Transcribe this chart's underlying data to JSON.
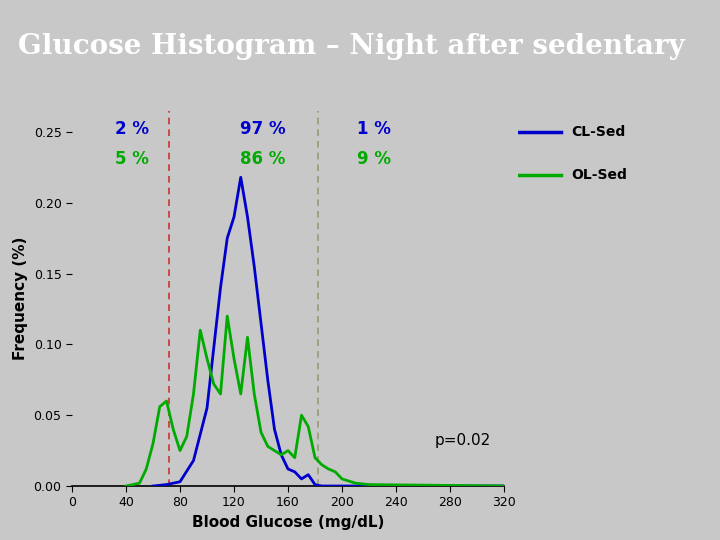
{
  "title": "Glucose Histogram – Night after sedentary",
  "title_bg_color": "#1B5EAB",
  "title_text_color": "#FFFFFF",
  "plot_bg_color": "#C8C8C8",
  "fig_bg_color": "#C8C8C8",
  "blue_band_color": "#4A90D9",
  "xlabel": "Blood Glucose (mg/dL)",
  "ylabel": "Frequency (%)",
  "xlim": [
    0,
    320
  ],
  "ylim": [
    0,
    0.265
  ],
  "xticks": [
    0,
    40,
    80,
    120,
    160,
    200,
    240,
    280,
    320
  ],
  "yticks": [
    0.0,
    0.05,
    0.1,
    0.15,
    0.2,
    0.25
  ],
  "vline1_x": 72,
  "vline1_color": "#CC3333",
  "vline2_x": 182,
  "vline2_color": "#999977",
  "cl_sed_color": "#0000CC",
  "ol_sed_color": "#00AA00",
  "legend_label_color": "#000000",
  "cl_x": [
    60,
    70,
    80,
    90,
    100,
    110,
    115,
    120,
    125,
    130,
    135,
    140,
    145,
    150,
    155,
    160,
    165,
    170,
    175,
    180,
    185,
    190,
    320
  ],
  "cl_y": [
    0.0,
    0.001,
    0.003,
    0.018,
    0.055,
    0.14,
    0.175,
    0.19,
    0.218,
    0.19,
    0.155,
    0.115,
    0.075,
    0.04,
    0.022,
    0.012,
    0.01,
    0.005,
    0.008,
    0.001,
    0.0,
    0.0,
    0.0
  ],
  "ol_x": [
    40,
    50,
    55,
    60,
    65,
    70,
    75,
    80,
    85,
    90,
    95,
    100,
    105,
    110,
    115,
    120,
    125,
    130,
    135,
    140,
    145,
    150,
    155,
    160,
    165,
    170,
    175,
    180,
    185,
    190,
    195,
    200,
    210,
    220,
    320
  ],
  "ol_y": [
    0.0,
    0.002,
    0.012,
    0.03,
    0.056,
    0.06,
    0.04,
    0.025,
    0.035,
    0.065,
    0.11,
    0.09,
    0.072,
    0.065,
    0.12,
    0.09,
    0.065,
    0.105,
    0.065,
    0.038,
    0.028,
    0.025,
    0.022,
    0.025,
    0.02,
    0.05,
    0.042,
    0.02,
    0.015,
    0.012,
    0.01,
    0.005,
    0.002,
    0.001,
    0.0
  ],
  "pct_blue_left": "2 %",
  "pct_blue_mid": "97 %",
  "pct_blue_right": "1 %",
  "pct_green_left": "5 %",
  "pct_green_mid": "86 %",
  "pct_green_right": "9 %",
  "pvalue_text": "p=0.02",
  "legend_labels": [
    "CL-Sed",
    "OL-Sed"
  ]
}
